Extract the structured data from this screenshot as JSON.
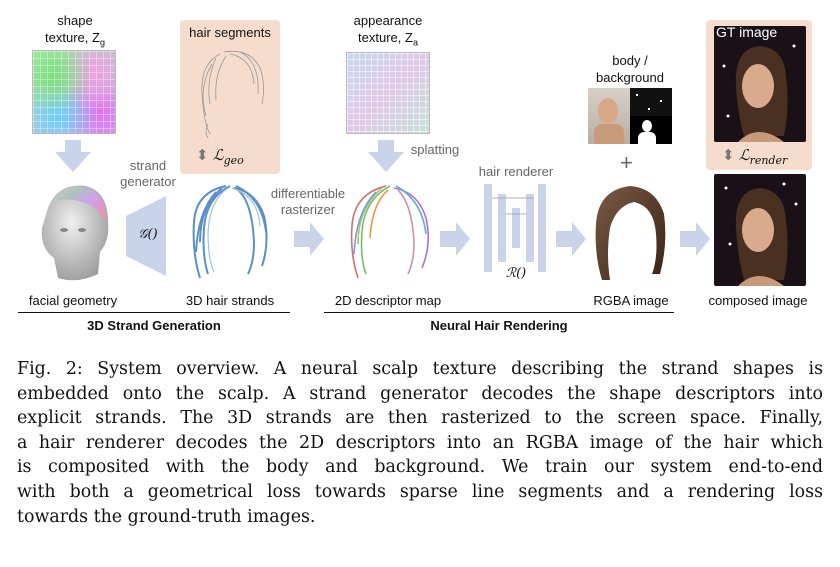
{
  "figure": {
    "labels": {
      "shape_texture_line1": "shape",
      "shape_texture_line2": "texture, Z",
      "shape_texture_sub": "g",
      "hair_segments": "hair segments",
      "appearance_texture_line1": "appearance",
      "appearance_texture_line2": "texture, Z",
      "appearance_texture_sub": "a",
      "body_background_line1": "body /",
      "body_background_line2": "background",
      "gt_image": "GT image",
      "strand_generator_line1": "strand",
      "strand_generator_line2": "generator",
      "differentiable_rasterizer_line1": "differentiable",
      "differentiable_rasterizer_line2": "rasterizer",
      "splatting": "splatting",
      "hair_renderer": "hair renderer",
      "generator_symbol": "𝒢()",
      "renderer_symbol": "ℛ()",
      "loss_geo": "ℒ",
      "loss_geo_sub": "geo",
      "loss_render": "ℒ",
      "loss_render_sub": "render",
      "plus": "+",
      "facial_geometry": "facial geometry",
      "hair_strands_3d": "3D hair strands",
      "descriptor_map_2d": "2D descriptor map",
      "rgba_image": "RGBA image",
      "composed_image": "composed image",
      "section_strand_generation": "3D Strand Generation",
      "section_neural_rendering": "Neural Hair Rendering"
    },
    "colors": {
      "arrow": "#c9d3ea",
      "peach": "#f6dccd",
      "hair_blue": "#5a8fc8",
      "hair_brown": "#5a3d2b"
    }
  },
  "caption": {
    "lines": [
      "Fig. 2: System overview. A neural scalp texture describing the strand shapes is",
      "embedded onto the scalp. A strand generator decodes the shape descriptors into",
      "explicit strands. The 3D strands are then rasterized to the screen space. Finally,",
      "a hair renderer decodes the 2D descriptors into an RGBA image of the hair which",
      "is composited with the body and background. We train our system end-to-end",
      "with both a geometrical loss towards sparse line segments and a rendering loss",
      "towards the ground-truth images."
    ]
  }
}
